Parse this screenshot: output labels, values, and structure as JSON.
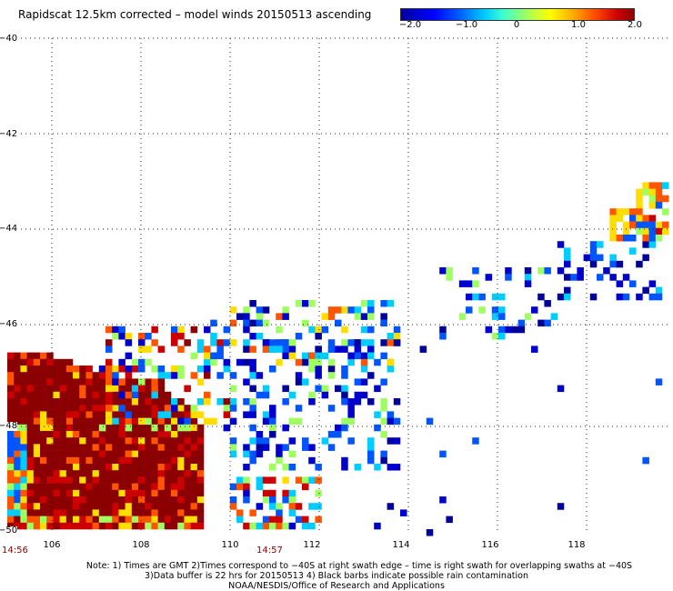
{
  "title": "Rapidscat 12.5km corrected – model winds 20150513 ascending",
  "colorbar": {
    "ticks": [
      "−2.0",
      "−1.0",
      "0",
      "1.0",
      "2.0"
    ],
    "colors": [
      "#0000a0",
      "#0000ff",
      "#00ccff",
      "#a0ff60",
      "#ffff00",
      "#ffaa00",
      "#cc0000",
      "#8b0000"
    ]
  },
  "axes": {
    "lat_labels": [
      "−40",
      "−42",
      "−44",
      "−46",
      "−48",
      "−50"
    ],
    "lon_labels": [
      "106",
      "108",
      "110",
      "112",
      "114",
      "116",
      "118"
    ]
  },
  "times": [
    "14:56",
    "14:57"
  ],
  "notes": [
    "Note: 1) Times are GMT 2)Times correspond to −40S at right swath edge – time is right swath for overlapping swaths at −40S",
    "3)Data buffer is 22 hrs for 20150513 4) Black barbs indicate possible rain contamination",
    "NOAA/NESDIS/Office of Research and Applications"
  ]
}
